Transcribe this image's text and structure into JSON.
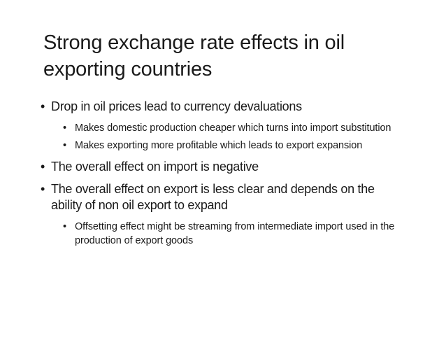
{
  "slide": {
    "title": "Strong exchange rate effects in oil exporting countries",
    "bullets": [
      {
        "text": "Drop in oil prices lead to currency devaluations",
        "sub": [
          "Makes domestic production cheaper which turns into import substitution",
          "Makes exporting more profitable which leads to export expansion"
        ]
      },
      {
        "text": "The overall effect on import is negative"
      },
      {
        "text": "The overall effect on export is less clear and depends on the ability of non oil export to expand",
        "sub": [
          "Offsetting effect might be streaming from intermediate import used in the production of export goods"
        ]
      }
    ],
    "bullet_glyph": "•"
  }
}
